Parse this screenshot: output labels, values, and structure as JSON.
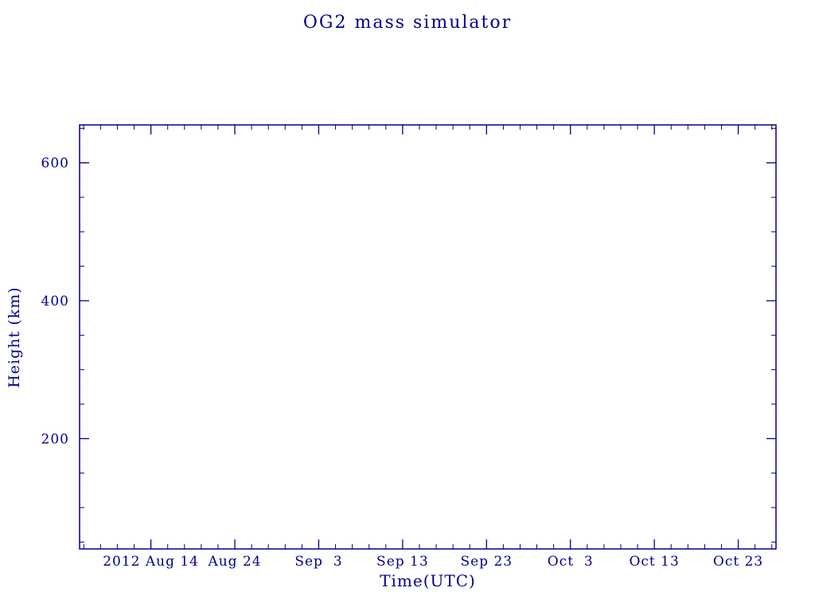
{
  "page": {
    "background": "#ffffff"
  },
  "chart_data": {
    "type": "line",
    "title": "OG2 mass simulator",
    "xlabel": "Time(UTC)",
    "ylabel": "Height (km)",
    "axis_color": "#00008b",
    "grid": false,
    "legend": false,
    "series": [],
    "x_ticks": [
      {
        "day": 0,
        "label": "2012 Aug 14"
      },
      {
        "day": 10,
        "label": "Aug 24"
      },
      {
        "day": 20,
        "label": "Sep  3"
      },
      {
        "day": 30,
        "label": "Sep 13"
      },
      {
        "day": 40,
        "label": "Sep 23"
      },
      {
        "day": 50,
        "label": "Oct  3"
      },
      {
        "day": 60,
        "label": "Oct 13"
      },
      {
        "day": 70,
        "label": "Oct 23"
      }
    ],
    "xlim_days": [
      -8.5,
      74.5
    ],
    "x_minor_step_days": 2,
    "y_ticks": [
      200,
      400,
      600
    ],
    "y_tick_labels": [
      "200",
      "400",
      "600"
    ],
    "ylim": [
      40,
      655
    ],
    "y_minor_step": 50
  }
}
